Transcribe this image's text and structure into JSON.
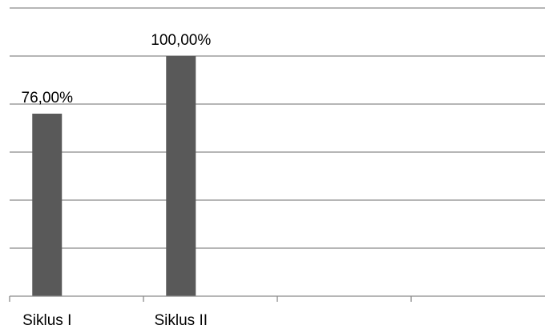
{
  "chart_data": {
    "type": "bar",
    "categories": [
      "Siklus I",
      "Siklus II",
      "",
      ""
    ],
    "values": [
      76.0,
      100.0,
      null,
      null
    ],
    "data_labels": [
      "76,00%",
      "100,00%",
      "",
      ""
    ],
    "ylim": [
      0,
      120
    ],
    "y_gridlines": [
      20,
      40,
      60,
      80,
      100,
      120
    ],
    "grid": true,
    "legend": "none",
    "bar_color": "#595959",
    "grid_color": "#8a8a8a"
  }
}
